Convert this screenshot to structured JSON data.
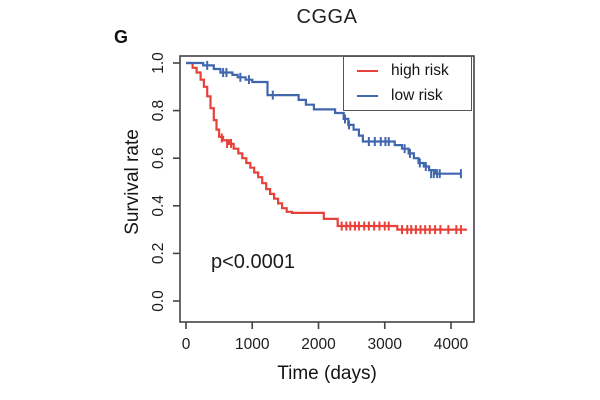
{
  "figure": {
    "panel_label": "G",
    "title": "CGGA",
    "xlabel": "Time (days)",
    "ylabel": "Survival rate",
    "p_value": "p<0.0001"
  },
  "chart_data": {
    "type": "line",
    "subtype": "kaplan-meier-step",
    "title": "CGGA",
    "xlabel": "Time (days)",
    "ylabel": "Survival rate",
    "x_ticks": [
      0,
      1000,
      2000,
      3000,
      4000
    ],
    "y_ticks": [
      "0.0",
      "0.2",
      "0.4",
      "0.6",
      "0.8",
      "1.0"
    ],
    "xlim": [
      0,
      4350
    ],
    "ylim": [
      0.0,
      1.0
    ],
    "grid": false,
    "legend_position": "top-right",
    "annotation": "p<0.0001",
    "axis_color": "#444444",
    "text_color": "#1c1c1c",
    "series": [
      {
        "name": "high risk",
        "color": "#e8413a",
        "steps": [
          [
            0,
            1.0
          ],
          [
            100,
            0.98
          ],
          [
            160,
            0.96
          ],
          [
            220,
            0.93
          ],
          [
            270,
            0.9
          ],
          [
            320,
            0.86
          ],
          [
            370,
            0.81
          ],
          [
            420,
            0.76
          ],
          [
            460,
            0.72
          ],
          [
            500,
            0.69
          ],
          [
            560,
            0.675
          ],
          [
            650,
            0.66
          ],
          [
            720,
            0.64
          ],
          [
            790,
            0.62
          ],
          [
            850,
            0.6
          ],
          [
            910,
            0.58
          ],
          [
            970,
            0.56
          ],
          [
            1030,
            0.54
          ],
          [
            1090,
            0.52
          ],
          [
            1150,
            0.495
          ],
          [
            1210,
            0.47
          ],
          [
            1270,
            0.45
          ],
          [
            1330,
            0.43
          ],
          [
            1390,
            0.41
          ],
          [
            1450,
            0.39
          ],
          [
            1520,
            0.375
          ],
          [
            1600,
            0.37
          ],
          [
            2080,
            0.345
          ],
          [
            2290,
            0.315
          ],
          [
            3190,
            0.3
          ],
          [
            4240,
            0.3
          ]
        ],
        "censors": [
          [
            540,
            0.685
          ],
          [
            620,
            0.662
          ],
          [
            680,
            0.662
          ],
          [
            2350,
            0.315
          ],
          [
            2420,
            0.315
          ],
          [
            2480,
            0.315
          ],
          [
            2550,
            0.315
          ],
          [
            2610,
            0.315
          ],
          [
            2690,
            0.315
          ],
          [
            2760,
            0.315
          ],
          [
            2840,
            0.315
          ],
          [
            2920,
            0.315
          ],
          [
            3000,
            0.315
          ],
          [
            3060,
            0.315
          ],
          [
            3260,
            0.3
          ],
          [
            3340,
            0.3
          ],
          [
            3400,
            0.3
          ],
          [
            3470,
            0.3
          ],
          [
            3540,
            0.3
          ],
          [
            3610,
            0.3
          ],
          [
            3680,
            0.3
          ],
          [
            3760,
            0.3
          ],
          [
            3840,
            0.3
          ],
          [
            3960,
            0.3
          ],
          [
            4080,
            0.3
          ],
          [
            4150,
            0.3
          ]
        ]
      },
      {
        "name": "low risk",
        "color": "#4067ae",
        "steps": [
          [
            0,
            1.0
          ],
          [
            260,
            0.99
          ],
          [
            420,
            0.975
          ],
          [
            520,
            0.96
          ],
          [
            700,
            0.95
          ],
          [
            780,
            0.94
          ],
          [
            900,
            0.93
          ],
          [
            1000,
            0.92
          ],
          [
            1230,
            0.865
          ],
          [
            1700,
            0.845
          ],
          [
            1810,
            0.825
          ],
          [
            1930,
            0.805
          ],
          [
            2250,
            0.79
          ],
          [
            2380,
            0.765
          ],
          [
            2450,
            0.74
          ],
          [
            2530,
            0.72
          ],
          [
            2610,
            0.695
          ],
          [
            2670,
            0.67
          ],
          [
            3150,
            0.655
          ],
          [
            3260,
            0.64
          ],
          [
            3360,
            0.62
          ],
          [
            3440,
            0.6
          ],
          [
            3510,
            0.58
          ],
          [
            3590,
            0.565
          ],
          [
            3670,
            0.55
          ],
          [
            3760,
            0.535
          ],
          [
            4160,
            0.535
          ]
        ],
        "censors": [
          [
            320,
            0.99
          ],
          [
            560,
            0.96
          ],
          [
            610,
            0.96
          ],
          [
            820,
            0.94
          ],
          [
            950,
            0.93
          ],
          [
            1310,
            0.865
          ],
          [
            2400,
            0.765
          ],
          [
            2460,
            0.74
          ],
          [
            2760,
            0.67
          ],
          [
            2850,
            0.67
          ],
          [
            2940,
            0.67
          ],
          [
            3010,
            0.67
          ],
          [
            3060,
            0.67
          ],
          [
            3300,
            0.64
          ],
          [
            3380,
            0.62
          ],
          [
            3530,
            0.58
          ],
          [
            3620,
            0.565
          ],
          [
            3700,
            0.535
          ],
          [
            3740,
            0.535
          ],
          [
            3790,
            0.535
          ],
          [
            3830,
            0.535
          ],
          [
            4150,
            0.535
          ]
        ]
      }
    ]
  }
}
